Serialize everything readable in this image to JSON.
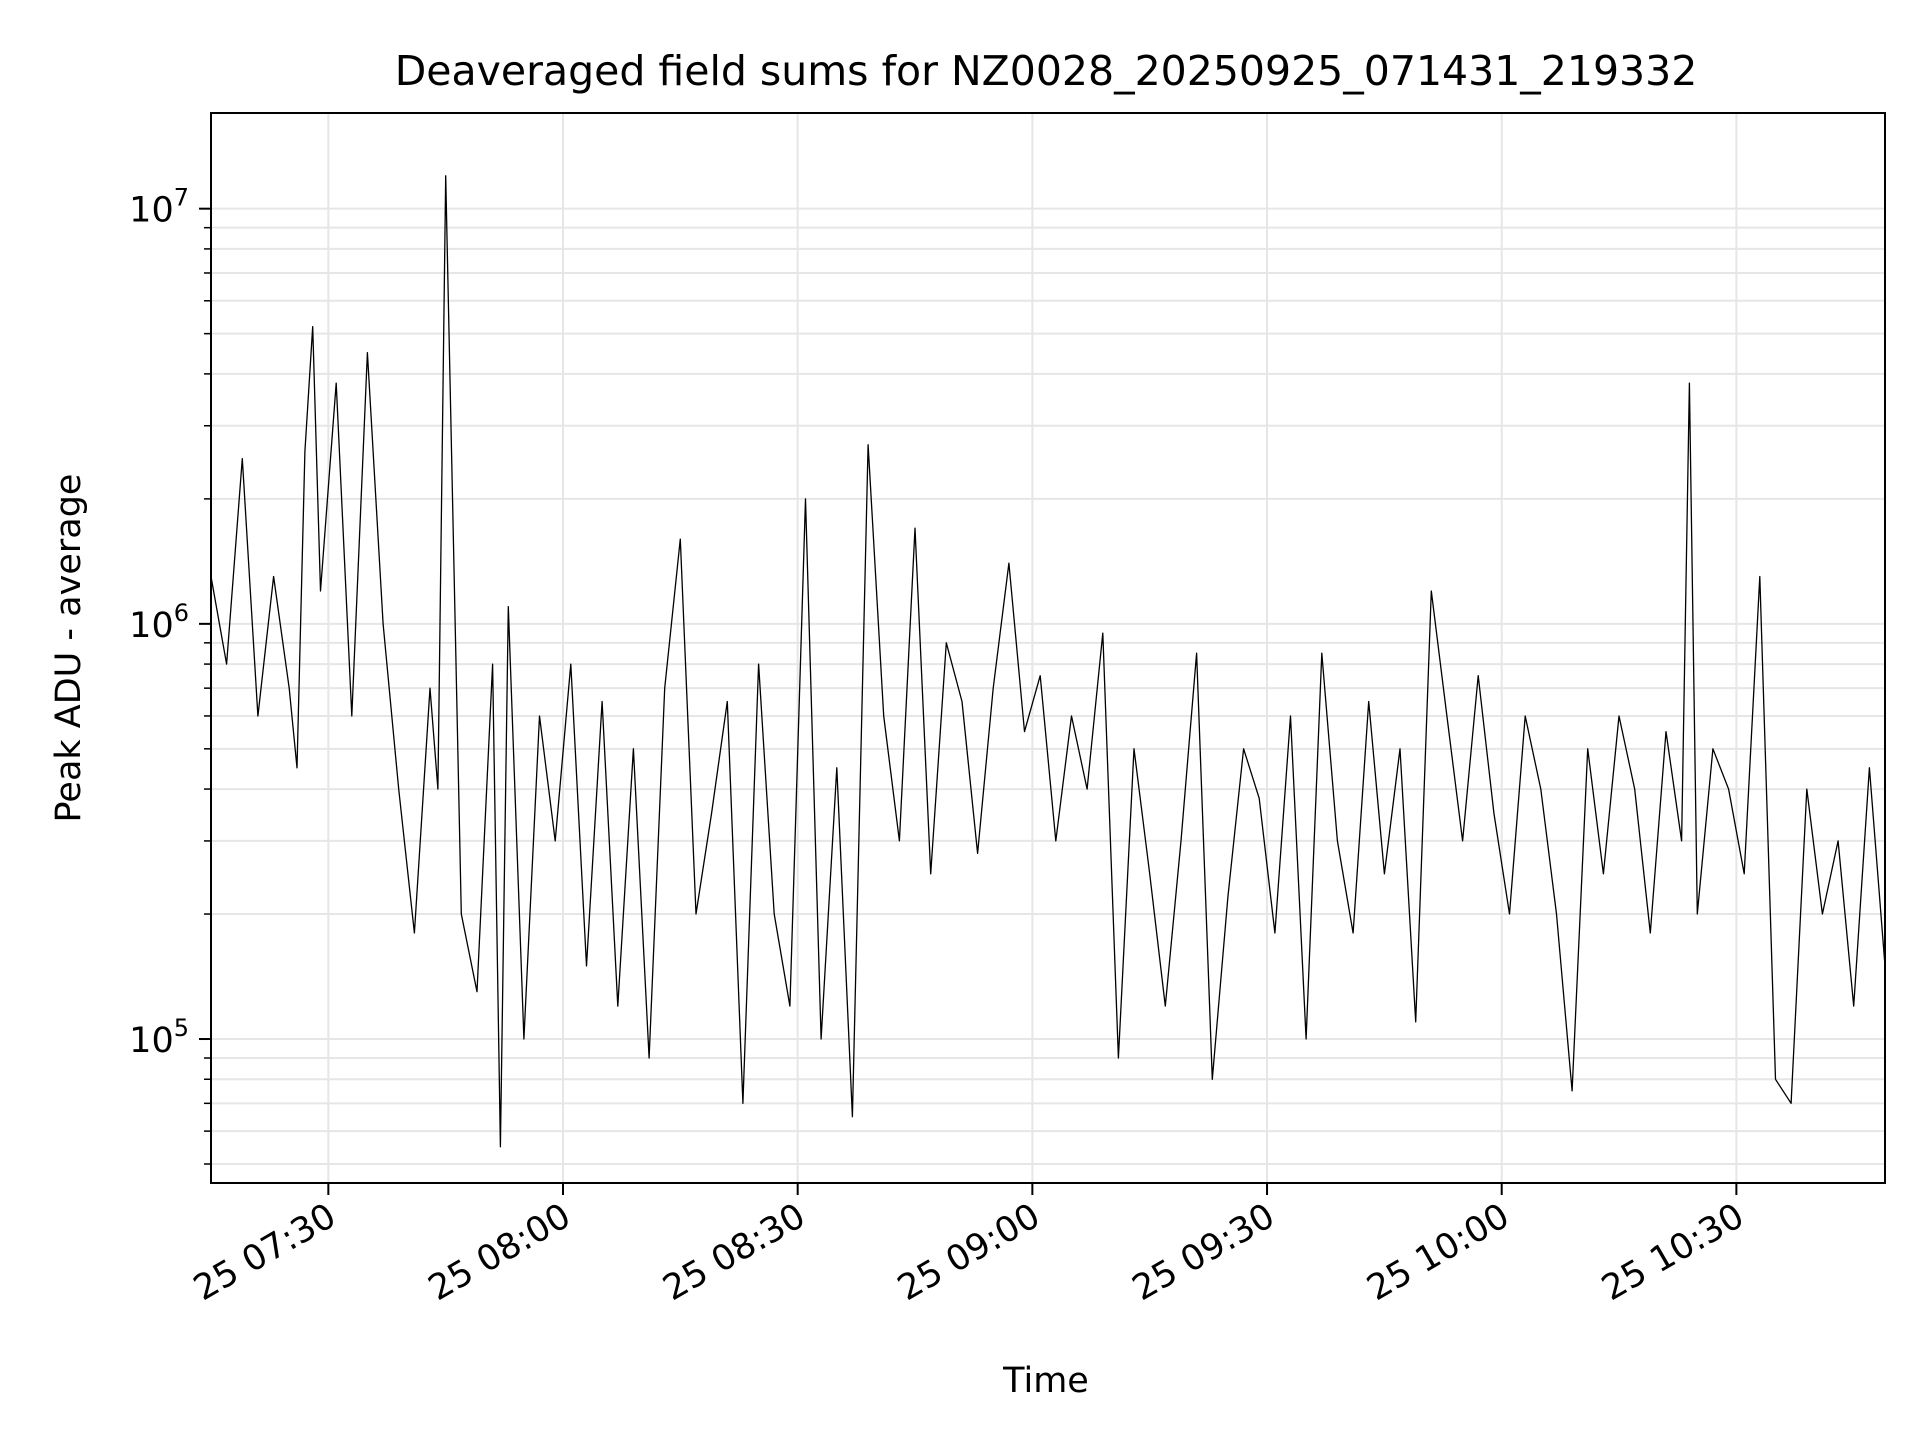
{
  "chart_data": {
    "type": "line",
    "title": "Deaveraged field sums for NZ0028_20250925_071431_219332",
    "xlabel": "Time",
    "ylabel": "Peak ADU - average",
    "x_range": [
      "2025-09-25 07:15",
      "2025-09-25 10:49"
    ],
    "y_scale": "log",
    "ylim": [
      45000,
      17000000
    ],
    "grid": true,
    "line_color": "#000000",
    "x_ticks": [
      {
        "value": "2025-09-25 07:30",
        "label": "25 07:30"
      },
      {
        "value": "2025-09-25 08:00",
        "label": "25 08:00"
      },
      {
        "value": "2025-09-25 08:30",
        "label": "25 08:30"
      },
      {
        "value": "2025-09-25 09:00",
        "label": "25 09:00"
      },
      {
        "value": "2025-09-25 09:30",
        "label": "25 09:30"
      },
      {
        "value": "2025-09-25 10:00",
        "label": "25 10:00"
      },
      {
        "value": "2025-09-25 10:30",
        "label": "25 10:30"
      }
    ],
    "y_ticks": [
      {
        "value": 100000,
        "base": "10",
        "exp": "5"
      },
      {
        "value": 1000000,
        "base": "10",
        "exp": "6"
      },
      {
        "value": 10000000,
        "base": "10",
        "exp": "7"
      }
    ],
    "series": [
      {
        "x": [
          "2025-09-25 07:15",
          "2025-09-25 07:17",
          "2025-09-25 07:19",
          "2025-09-25 07:21",
          "2025-09-25 07:23",
          "2025-09-25 07:25",
          "2025-09-25 07:26",
          "2025-09-25 07:27",
          "2025-09-25 07:28",
          "2025-09-25 07:29",
          "2025-09-25 07:31",
          "2025-09-25 07:33",
          "2025-09-25 07:35",
          "2025-09-25 07:37",
          "2025-09-25 07:39",
          "2025-09-25 07:41",
          "2025-09-25 07:43",
          "2025-09-25 07:44",
          "2025-09-25 07:45",
          "2025-09-25 07:47",
          "2025-09-25 07:49",
          "2025-09-25 07:51",
          "2025-09-25 07:52",
          "2025-09-25 07:53",
          "2025-09-25 07:55",
          "2025-09-25 07:57",
          "2025-09-25 07:59",
          "2025-09-25 08:01",
          "2025-09-25 08:03",
          "2025-09-25 08:05",
          "2025-09-25 08:07",
          "2025-09-25 08:09",
          "2025-09-25 08:11",
          "2025-09-25 08:13",
          "2025-09-25 08:15",
          "2025-09-25 08:17",
          "2025-09-25 08:19",
          "2025-09-25 08:21",
          "2025-09-25 08:23",
          "2025-09-25 08:25",
          "2025-09-25 08:27",
          "2025-09-25 08:29",
          "2025-09-25 08:31",
          "2025-09-25 08:33",
          "2025-09-25 08:35",
          "2025-09-25 08:37",
          "2025-09-25 08:39",
          "2025-09-25 08:41",
          "2025-09-25 08:43",
          "2025-09-25 08:45",
          "2025-09-25 08:47",
          "2025-09-25 08:49",
          "2025-09-25 08:51",
          "2025-09-25 08:53",
          "2025-09-25 08:55",
          "2025-09-25 08:57",
          "2025-09-25 08:59",
          "2025-09-25 09:01",
          "2025-09-25 09:03",
          "2025-09-25 09:05",
          "2025-09-25 09:07",
          "2025-09-25 09:09",
          "2025-09-25 09:11",
          "2025-09-25 09:13",
          "2025-09-25 09:15",
          "2025-09-25 09:17",
          "2025-09-25 09:19",
          "2025-09-25 09:21",
          "2025-09-25 09:23",
          "2025-09-25 09:25",
          "2025-09-25 09:27",
          "2025-09-25 09:29",
          "2025-09-25 09:31",
          "2025-09-25 09:33",
          "2025-09-25 09:35",
          "2025-09-25 09:37",
          "2025-09-25 09:39",
          "2025-09-25 09:41",
          "2025-09-25 09:43",
          "2025-09-25 09:45",
          "2025-09-25 09:47",
          "2025-09-25 09:49",
          "2025-09-25 09:51",
          "2025-09-25 09:53",
          "2025-09-25 09:55",
          "2025-09-25 09:57",
          "2025-09-25 09:59",
          "2025-09-25 10:01",
          "2025-09-25 10:03",
          "2025-09-25 10:05",
          "2025-09-25 10:07",
          "2025-09-25 10:09",
          "2025-09-25 10:11",
          "2025-09-25 10:13",
          "2025-09-25 10:15",
          "2025-09-25 10:17",
          "2025-09-25 10:19",
          "2025-09-25 10:21",
          "2025-09-25 10:23",
          "2025-09-25 10:24",
          "2025-09-25 10:25",
          "2025-09-25 10:27",
          "2025-09-25 10:29",
          "2025-09-25 10:31",
          "2025-09-25 10:33",
          "2025-09-25 10:35",
          "2025-09-25 10:37",
          "2025-09-25 10:39",
          "2025-09-25 10:41",
          "2025-09-25 10:43",
          "2025-09-25 10:45",
          "2025-09-25 10:47",
          "2025-09-25 10:49"
        ],
        "y": [
          1300000,
          800000,
          2500000,
          600000,
          1300000,
          700000,
          450000,
          2600000,
          5200000,
          1200000,
          3800000,
          600000,
          4500000,
          1000000,
          400000,
          180000,
          700000,
          400000,
          12000000,
          200000,
          130000,
          800000,
          55000,
          1100000,
          100000,
          600000,
          300000,
          800000,
          150000,
          650000,
          120000,
          500000,
          90000,
          700000,
          1600000,
          200000,
          350000,
          650000,
          70000,
          800000,
          200000,
          120000,
          2000000,
          100000,
          450000,
          65000,
          2700000,
          600000,
          300000,
          1700000,
          250000,
          900000,
          650000,
          280000,
          700000,
          1400000,
          550000,
          750000,
          300000,
          600000,
          400000,
          950000,
          90000,
          500000,
          250000,
          120000,
          300000,
          850000,
          80000,
          220000,
          500000,
          380000,
          180000,
          600000,
          100000,
          850000,
          300000,
          180000,
          650000,
          250000,
          500000,
          110000,
          1200000,
          600000,
          300000,
          750000,
          350000,
          200000,
          600000,
          400000,
          200000,
          75000,
          500000,
          250000,
          600000,
          400000,
          180000,
          550000,
          300000,
          3800000,
          200000,
          500000,
          400000,
          250000,
          1300000,
          80000,
          70000,
          400000,
          200000,
          300000,
          120000,
          450000,
          150000
        ]
      }
    ]
  }
}
